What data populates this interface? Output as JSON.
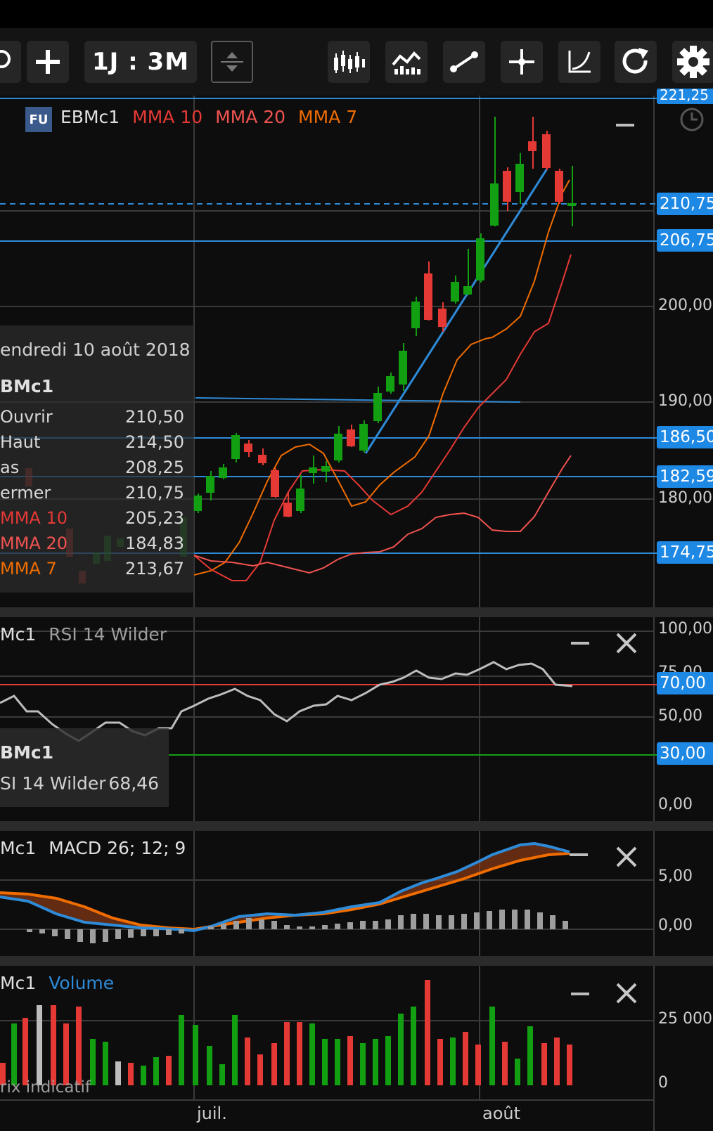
{
  "toolbar": {
    "period_label": "1J : 3M",
    "buttons": [
      "search-icon",
      "add-icon",
      "stepper-icon",
      "candlestick-type-icon",
      "indicators-icon",
      "trendline-icon",
      "crosshair-icon",
      "drawing-tool-icon",
      "refresh-icon",
      "settings-icon"
    ]
  },
  "main_chart": {
    "badge": "FU",
    "symbol": "EBMc1",
    "legend": [
      {
        "label": "MMA 10",
        "color": "#e53935"
      },
      {
        "label": "MMA 20",
        "color": "#ef5350"
      },
      {
        "label": "MMA 7",
        "color": "#ef6c00"
      }
    ],
    "axis_labels": [
      "200,00",
      "190,00",
      "180,00"
    ],
    "price_tags": [
      "210,75",
      "206,75",
      "186,50",
      "182,59",
      "174,75"
    ],
    "top_tag_partial": "221,25",
    "info": {
      "date": "endredi 10 août 2018",
      "symbol": "BMc1",
      "rows": [
        {
          "k": "Ouvrir",
          "v": "210,50",
          "color": "#d8d8d8"
        },
        {
          "k": "Haut",
          "v": "214,50",
          "color": "#d8d8d8"
        },
        {
          "k": "as",
          "v": "208,25",
          "color": "#d8d8d8"
        },
        {
          "k": "ermer",
          "v": "210,75",
          "color": "#d8d8d8"
        },
        {
          "k": "MMA 10",
          "v": "205,23",
          "color": "#e53935"
        },
        {
          "k": "MMA 20",
          "v": "184,83",
          "color": "#ef5350"
        },
        {
          "k": "MMA 7",
          "v": "213,67",
          "color": "#ef6c00"
        }
      ]
    }
  },
  "rsi_panel": {
    "symbol": "Mc1",
    "label": "RSI 14 Wilder",
    "axis_labels": [
      "100,00",
      "50,00",
      "0,00"
    ],
    "partial_label": "75,00",
    "tags": [
      "70,00",
      "30,00"
    ],
    "info_symbol": "BMc1",
    "info_label": "SI 14 Wilder",
    "info_value": "68,46"
  },
  "macd_panel": {
    "symbol": "Mc1",
    "label": "MACD 26; 12; 9",
    "axis_labels": [
      "5,00",
      "0,00"
    ]
  },
  "volume_panel": {
    "symbol": "Mc1",
    "label": "Volume",
    "axis_labels": [
      "25 000",
      "0"
    ],
    "footer": "rix indicatif"
  },
  "x_axis": {
    "labels": [
      "juil.",
      "août"
    ]
  },
  "colors": {
    "up": "#12a012",
    "down": "#e53935",
    "line_blue": "#2e8bd8",
    "ma10": "#e53935",
    "ma20": "#ef5350",
    "ma7": "#ef6c00",
    "rsi": "#bdbdbd"
  }
}
